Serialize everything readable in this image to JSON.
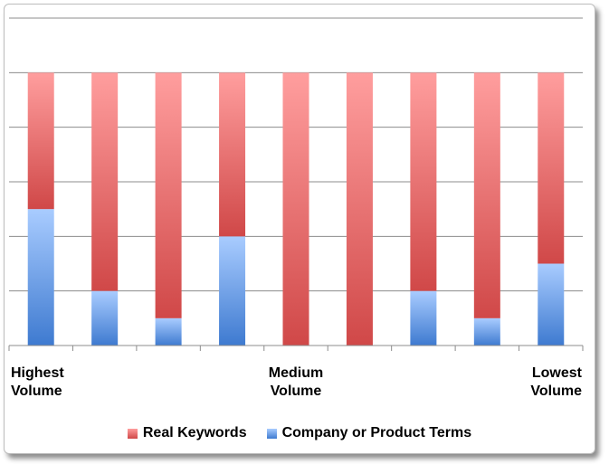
{
  "chart_data": {
    "type": "bar",
    "stacked": true,
    "categories": [
      "Highest\nVolume",
      "",
      "",
      "",
      "Medium\nVolume",
      "",
      "",
      "",
      "Lowest\nVolume"
    ],
    "series": [
      {
        "name": "Company or Product Terms",
        "color": "#4f81bd",
        "values": [
          2.5,
          1,
          0.5,
          2,
          0,
          0,
          1,
          0.5,
          1.5
        ]
      },
      {
        "name": "Real Keywords",
        "color": "#c0504d",
        "values": [
          2.5,
          4,
          4.5,
          3,
          5,
          5,
          4,
          4.5,
          3.5
        ]
      }
    ],
    "ylim": [
      0,
      6
    ],
    "y_ticks": [
      0,
      1,
      2,
      3,
      4,
      5,
      6
    ],
    "y_tick_labels_shown": false,
    "grid": true,
    "legend_position": "bottom"
  },
  "legend": {
    "real_label": "Real Keywords",
    "company_label": "Company or Product Terms"
  }
}
